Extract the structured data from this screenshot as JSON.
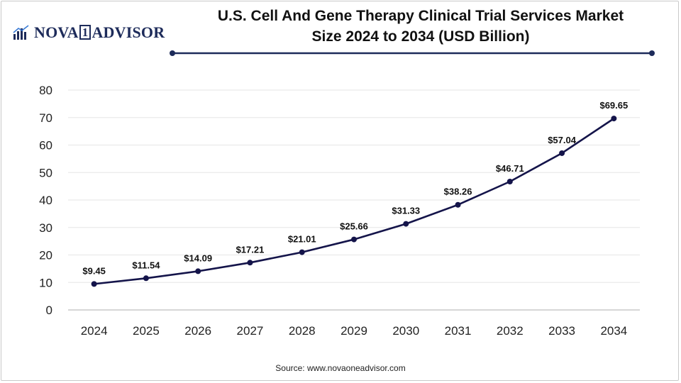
{
  "header": {
    "logo_text_left": "NOVA",
    "logo_text_box": "1",
    "logo_text_right": "ADVISOR",
    "logo_icon": "bar-graph-icon",
    "title_line1": "U.S. Cell And Gene Therapy Clinical Trial Services Market",
    "title_line2": "Size 2024 to 2034 (USD Billion)"
  },
  "colors": {
    "line": "#14144a",
    "marker": "#14144a",
    "accent": "#1d2b5a",
    "grid": "#e6e6e6"
  },
  "chart_data": {
    "type": "line",
    "title": "U.S. Cell And Gene Therapy Clinical Trial Services Market Size 2024 to 2034 (USD Billion)",
    "xlabel": "",
    "ylabel": "",
    "ylim": [
      0,
      80
    ],
    "yticks": [
      0,
      10,
      20,
      30,
      40,
      50,
      60,
      70,
      80
    ],
    "grid": true,
    "categories": [
      "2024",
      "2025",
      "2026",
      "2027",
      "2028",
      "2029",
      "2030",
      "2031",
      "2032",
      "2033",
      "2034"
    ],
    "values": [
      9.45,
      11.54,
      14.09,
      17.21,
      21.01,
      25.66,
      31.33,
      38.26,
      46.71,
      57.04,
      69.65
    ],
    "labels": [
      "$9.45",
      "$11.54",
      "$14.09",
      "$17.21",
      "$21.01",
      "$25.66",
      "$31.33",
      "$38.26",
      "$46.71",
      "$57.04",
      "$69.65"
    ]
  },
  "footer": {
    "source": "Source: www.novaoneadvisor.com"
  }
}
